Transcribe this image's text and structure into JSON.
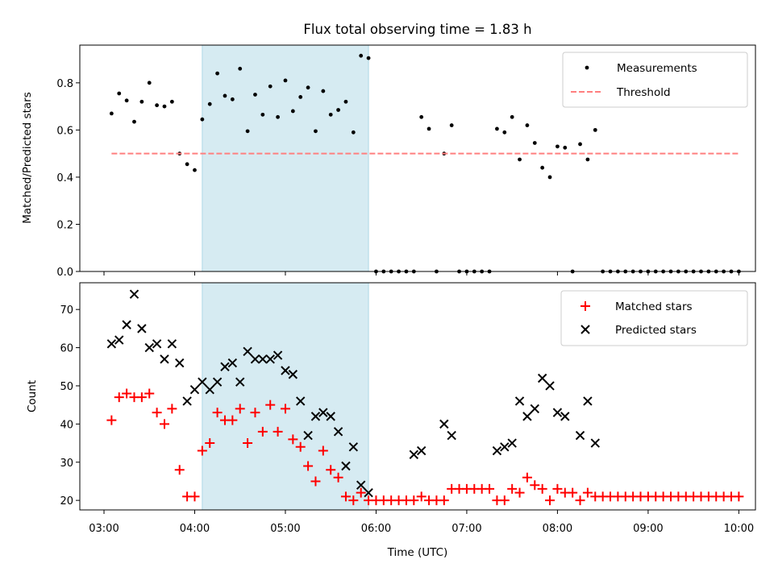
{
  "title": "Flux total observing time = 1.83 h",
  "colors": {
    "measurement": "#000000",
    "threshold": "#ff7f7f",
    "matched": "#ff0000",
    "predicted": "#000000",
    "shade": "#add8e6"
  },
  "chart_data": [
    {
      "type": "scatter",
      "panel": "top",
      "ylabel": "Matched/Predicted stars",
      "xlim": [
        "02:44",
        "10:11"
      ],
      "ylim": [
        0,
        0.96
      ],
      "yticks": [
        "0.0",
        "0.2",
        "0.4",
        "0.6",
        "0.8"
      ],
      "legend_position": "top-right",
      "shaded_interval": [
        "04:05",
        "05:55"
      ],
      "series": [
        {
          "name": "Measurements",
          "marker": "dot",
          "points": [
            [
              "03:05",
              0.67
            ],
            [
              "03:10",
              0.755
            ],
            [
              "03:15",
              0.725
            ],
            [
              "03:20",
              0.635
            ],
            [
              "03:25",
              0.72
            ],
            [
              "03:30",
              0.8
            ],
            [
              "03:35",
              0.705
            ],
            [
              "03:40",
              0.7
            ],
            [
              "03:45",
              0.72
            ],
            [
              "03:50",
              0.5
            ],
            [
              "03:55",
              0.455
            ],
            [
              "04:00",
              0.43
            ],
            [
              "04:05",
              0.645
            ],
            [
              "04:10",
              0.71
            ],
            [
              "04:15",
              0.84
            ],
            [
              "04:20",
              0.745
            ],
            [
              "04:25",
              0.73
            ],
            [
              "04:30",
              0.86
            ],
            [
              "04:35",
              0.595
            ],
            [
              "04:40",
              0.75
            ],
            [
              "04:45",
              0.665
            ],
            [
              "04:50",
              0.785
            ],
            [
              "04:55",
              0.655
            ],
            [
              "05:00",
              0.81
            ],
            [
              "05:05",
              0.68
            ],
            [
              "05:10",
              0.74
            ],
            [
              "05:15",
              0.78
            ],
            [
              "05:20",
              0.595
            ],
            [
              "05:25",
              0.765
            ],
            [
              "05:30",
              0.665
            ],
            [
              "05:35",
              0.685
            ],
            [
              "05:40",
              0.72
            ],
            [
              "05:45",
              0.59
            ],
            [
              "05:50",
              0.915
            ],
            [
              "05:55",
              0.905
            ],
            [
              "06:00",
              0.0
            ],
            [
              "06:05",
              0.0
            ],
            [
              "06:10",
              0.0
            ],
            [
              "06:15",
              0.0
            ],
            [
              "06:20",
              0.0
            ],
            [
              "06:25",
              0.0
            ],
            [
              "06:30",
              0.655
            ],
            [
              "06:35",
              0.605
            ],
            [
              "06:40",
              0.0
            ],
            [
              "06:45",
              0.5
            ],
            [
              "06:50",
              0.62
            ],
            [
              "06:55",
              0.0
            ],
            [
              "07:00",
              0.0
            ],
            [
              "07:05",
              0.0
            ],
            [
              "07:10",
              0.0
            ],
            [
              "07:15",
              0.0
            ],
            [
              "07:20",
              0.605
            ],
            [
              "07:25",
              0.59
            ],
            [
              "07:30",
              0.655
            ],
            [
              "07:35",
              0.475
            ],
            [
              "07:40",
              0.62
            ],
            [
              "07:45",
              0.545
            ],
            [
              "07:50",
              0.44
            ],
            [
              "07:55",
              0.4
            ],
            [
              "08:00",
              0.53
            ],
            [
              "08:05",
              0.525
            ],
            [
              "08:10",
              0.0
            ],
            [
              "08:15",
              0.54
            ],
            [
              "08:20",
              0.475
            ],
            [
              "08:25",
              0.6
            ],
            [
              "08:30",
              0.0
            ],
            [
              "08:35",
              0.0
            ],
            [
              "08:40",
              0.0
            ],
            [
              "08:45",
              0.0
            ],
            [
              "08:50",
              0.0
            ],
            [
              "08:55",
              0.0
            ],
            [
              "09:00",
              0.0
            ],
            [
              "09:05",
              0.0
            ],
            [
              "09:10",
              0.0
            ],
            [
              "09:15",
              0.0
            ],
            [
              "09:20",
              0.0
            ],
            [
              "09:25",
              0.0
            ],
            [
              "09:30",
              0.0
            ],
            [
              "09:35",
              0.0
            ],
            [
              "09:40",
              0.0
            ],
            [
              "09:45",
              0.0
            ],
            [
              "09:50",
              0.0
            ],
            [
              "09:55",
              0.0
            ],
            [
              "10:00",
              0.0
            ]
          ]
        },
        {
          "name": "Threshold",
          "style": "dashed-line",
          "points": [
            [
              "03:05",
              0.5
            ],
            [
              "10:00",
              0.5
            ]
          ]
        }
      ]
    },
    {
      "type": "scatter",
      "panel": "bottom",
      "xlabel": "Time (UTC)",
      "ylabel": "Count",
      "xlim": [
        "02:44",
        "10:11"
      ],
      "ylim": [
        17.5,
        77
      ],
      "yticks": [
        "20",
        "30",
        "40",
        "50",
        "60",
        "70"
      ],
      "xticks": [
        "03:00",
        "04:00",
        "05:00",
        "06:00",
        "07:00",
        "08:00",
        "09:00",
        "10:00"
      ],
      "legend_position": "top-right",
      "shaded_interval": [
        "04:05",
        "05:55"
      ],
      "series": [
        {
          "name": "Matched stars",
          "marker": "plus",
          "points": [
            [
              "03:05",
              41
            ],
            [
              "03:10",
              47
            ],
            [
              "03:15",
              48
            ],
            [
              "03:20",
              47
            ],
            [
              "03:25",
              47
            ],
            [
              "03:30",
              48
            ],
            [
              "03:35",
              43
            ],
            [
              "03:40",
              40
            ],
            [
              "03:45",
              44
            ],
            [
              "03:50",
              28
            ],
            [
              "03:55",
              21
            ],
            [
              "04:00",
              21
            ],
            [
              "04:05",
              33
            ],
            [
              "04:10",
              35
            ],
            [
              "04:15",
              43
            ],
            [
              "04:20",
              41
            ],
            [
              "04:25",
              41
            ],
            [
              "04:30",
              44
            ],
            [
              "04:35",
              35
            ],
            [
              "04:40",
              43
            ],
            [
              "04:45",
              38
            ],
            [
              "04:50",
              45
            ],
            [
              "04:55",
              38
            ],
            [
              "05:00",
              44
            ],
            [
              "05:05",
              36
            ],
            [
              "05:10",
              34
            ],
            [
              "05:15",
              29
            ],
            [
              "05:20",
              25
            ],
            [
              "05:25",
              33
            ],
            [
              "05:30",
              28
            ],
            [
              "05:35",
              26
            ],
            [
              "05:40",
              21
            ],
            [
              "05:45",
              20
            ],
            [
              "05:50",
              22
            ],
            [
              "05:55",
              20
            ],
            [
              "06:00",
              20
            ],
            [
              "06:05",
              20
            ],
            [
              "06:10",
              20
            ],
            [
              "06:15",
              20
            ],
            [
              "06:20",
              20
            ],
            [
              "06:25",
              20
            ],
            [
              "06:30",
              21
            ],
            [
              "06:35",
              20
            ],
            [
              "06:40",
              20
            ],
            [
              "06:45",
              20
            ],
            [
              "06:50",
              23
            ],
            [
              "06:55",
              23
            ],
            [
              "07:00",
              23
            ],
            [
              "07:05",
              23
            ],
            [
              "07:10",
              23
            ],
            [
              "07:15",
              23
            ],
            [
              "07:20",
              20
            ],
            [
              "07:25",
              20
            ],
            [
              "07:30",
              23
            ],
            [
              "07:35",
              22
            ],
            [
              "07:40",
              26
            ],
            [
              "07:45",
              24
            ],
            [
              "07:50",
              23
            ],
            [
              "07:55",
              20
            ],
            [
              "08:00",
              23
            ],
            [
              "08:05",
              22
            ],
            [
              "08:10",
              22
            ],
            [
              "08:15",
              20
            ],
            [
              "08:20",
              22
            ],
            [
              "08:25",
              21
            ],
            [
              "08:30",
              21
            ],
            [
              "08:35",
              21
            ],
            [
              "08:40",
              21
            ],
            [
              "08:45",
              21
            ],
            [
              "08:50",
              21
            ],
            [
              "08:55",
              21
            ],
            [
              "09:00",
              21
            ],
            [
              "09:05",
              21
            ],
            [
              "09:10",
              21
            ],
            [
              "09:15",
              21
            ],
            [
              "09:20",
              21
            ],
            [
              "09:25",
              21
            ],
            [
              "09:30",
              21
            ],
            [
              "09:35",
              21
            ],
            [
              "09:40",
              21
            ],
            [
              "09:45",
              21
            ],
            [
              "09:50",
              21
            ],
            [
              "09:55",
              21
            ],
            [
              "10:00",
              21
            ]
          ]
        },
        {
          "name": "Predicted stars",
          "marker": "x",
          "points": [
            [
              "03:05",
              61
            ],
            [
              "03:10",
              62
            ],
            [
              "03:15",
              66
            ],
            [
              "03:20",
              74
            ],
            [
              "03:25",
              65
            ],
            [
              "03:30",
              60
            ],
            [
              "03:35",
              61
            ],
            [
              "03:40",
              57
            ],
            [
              "03:45",
              61
            ],
            [
              "03:50",
              56
            ],
            [
              "03:55",
              46
            ],
            [
              "04:00",
              49
            ],
            [
              "04:05",
              51
            ],
            [
              "04:10",
              49
            ],
            [
              "04:15",
              51
            ],
            [
              "04:20",
              55
            ],
            [
              "04:25",
              56
            ],
            [
              "04:30",
              51
            ],
            [
              "04:35",
              59
            ],
            [
              "04:40",
              57
            ],
            [
              "04:45",
              57
            ],
            [
              "04:50",
              57
            ],
            [
              "04:55",
              58
            ],
            [
              "05:00",
              54
            ],
            [
              "05:05",
              53
            ],
            [
              "05:10",
              46
            ],
            [
              "05:15",
              37
            ],
            [
              "05:20",
              42
            ],
            [
              "05:25",
              43
            ],
            [
              "05:30",
              42
            ],
            [
              "05:35",
              38
            ],
            [
              "05:40",
              29
            ],
            [
              "05:45",
              34
            ],
            [
              "05:50",
              24
            ],
            [
              "05:55",
              22
            ],
            [
              "06:25",
              32
            ],
            [
              "06:30",
              33
            ],
            [
              "06:45",
              40
            ],
            [
              "06:50",
              37
            ],
            [
              "07:20",
              33
            ],
            [
              "07:25",
              34
            ],
            [
              "07:30",
              35
            ],
            [
              "07:35",
              46
            ],
            [
              "07:40",
              42
            ],
            [
              "07:45",
              44
            ],
            [
              "07:50",
              52
            ],
            [
              "07:55",
              50
            ],
            [
              "08:00",
              43
            ],
            [
              "08:05",
              42
            ],
            [
              "08:15",
              37
            ],
            [
              "08:20",
              46
            ],
            [
              "08:25",
              35
            ]
          ]
        }
      ]
    }
  ]
}
